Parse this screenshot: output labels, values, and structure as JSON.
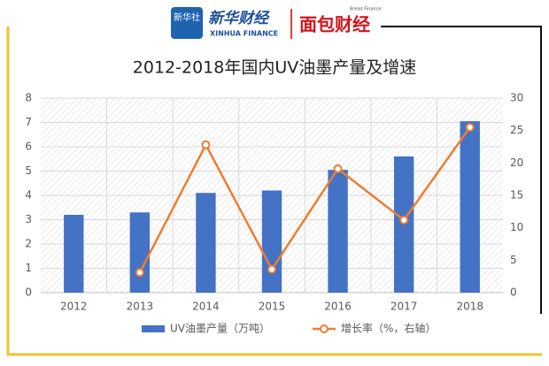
{
  "header": {
    "logo_badge": "新华社",
    "brand": "新华财经",
    "brand_en": "XINHUA FINANCE",
    "partner": "面包财经",
    "partner_en": "Bread Finance"
  },
  "chart_data": {
    "type": "bar",
    "title": "2012-2018年国内UV油墨产量及增速",
    "categories": [
      "2012",
      "2013",
      "2014",
      "2015",
      "2016",
      "2017",
      "2018"
    ],
    "series": [
      {
        "name": "UV油墨产量（万吨）",
        "type": "bar",
        "color": "#4472c4",
        "values": [
          3.2,
          3.3,
          4.1,
          4.2,
          5.05,
          5.6,
          7.05
        ]
      },
      {
        "name": "增长率（%，右轴）",
        "type": "line",
        "axis": "y2",
        "color": "#ed7d31",
        "values": [
          null,
          3.1,
          22.8,
          3.6,
          19.1,
          11.2,
          25.5
        ]
      }
    ],
    "ylim": [
      0,
      8
    ],
    "yticks": [
      0,
      1,
      2,
      3,
      4,
      5,
      6,
      7,
      8
    ],
    "y2lim": [
      0,
      30
    ],
    "y2ticks": [
      0,
      5,
      10,
      15,
      20,
      25,
      30
    ],
    "grid": true,
    "legend": "bottom"
  }
}
